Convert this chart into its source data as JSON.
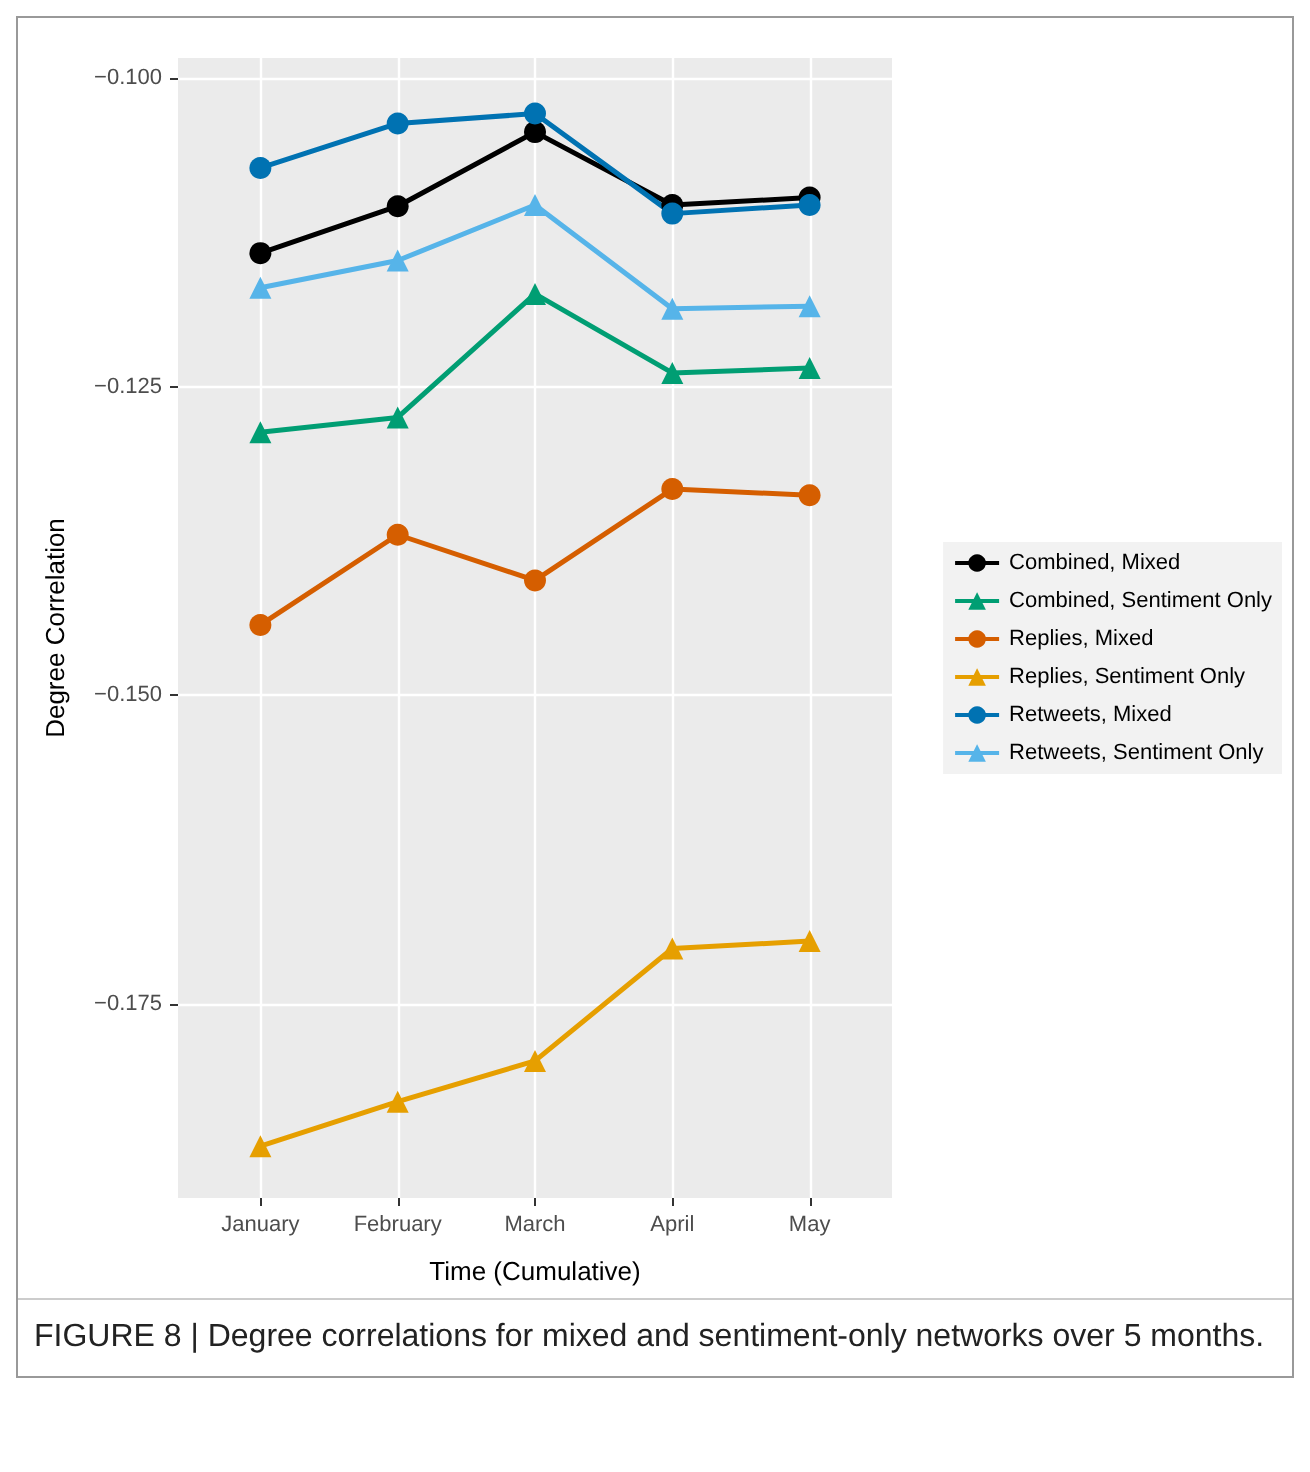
{
  "chart_data": {
    "type": "line",
    "xlabel": "Time (Cumulative)",
    "ylabel": "Degree Correlation",
    "categories": [
      "January",
      "February",
      "March",
      "April",
      "May"
    ],
    "series": [
      {
        "name": "Combined, Mixed",
        "color": "#000000",
        "marker": "circle",
        "values": [
          -0.1142,
          -0.1104,
          -0.1044,
          -0.1103,
          -0.1097
        ]
      },
      {
        "name": "Combined, Sentiment Only",
        "color": "#009e73",
        "marker": "triangle",
        "values": [
          -0.1287,
          -0.1275,
          -0.1175,
          -0.1239,
          -0.1235
        ]
      },
      {
        "name": "Replies, Mixed",
        "color": "#d55e00",
        "marker": "circle",
        "values": [
          -0.1443,
          -0.137,
          -0.1407,
          -0.1333,
          -0.1338
        ]
      },
      {
        "name": "Replies, Sentiment Only",
        "color": "#e69f00",
        "marker": "triangle",
        "values": [
          -0.1865,
          -0.1829,
          -0.1796,
          -0.1705,
          -0.1699
        ]
      },
      {
        "name": "Retweets, Mixed",
        "color": "#0072b2",
        "marker": "circle",
        "values": [
          -0.1073,
          -0.1037,
          -0.1029,
          -0.111,
          -0.1103
        ]
      },
      {
        "name": "Retweets, Sentiment Only",
        "color": "#56b4e9",
        "marker": "triangle",
        "values": [
          -0.117,
          -0.1148,
          -0.1103,
          -0.1187,
          -0.1185
        ]
      }
    ],
    "ylim": [
      -0.1907,
      -0.0984
    ],
    "yticks": [
      {
        "value": -0.175,
        "label": "−0.175"
      },
      {
        "value": -0.15,
        "label": "−0.150"
      },
      {
        "value": -0.125,
        "label": "−0.125"
      },
      {
        "value": -0.1,
        "label": "−0.100"
      }
    ],
    "grid": true,
    "legend": "right",
    "line_style": "solid",
    "annotations": [
      "FIGURE 8 | Degree correlations for mixed and sentiment-only networks over 5 months."
    ]
  }
}
